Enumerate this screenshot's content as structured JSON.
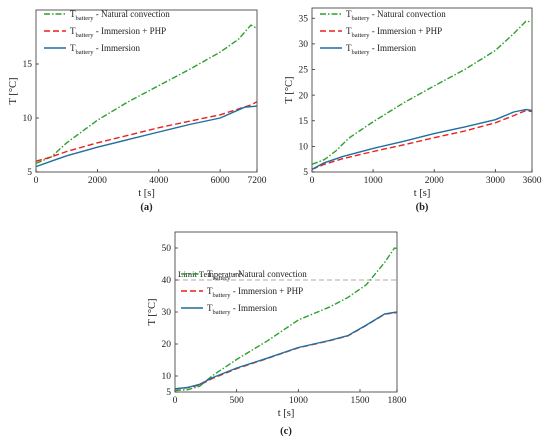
{
  "chart_data": [
    {
      "id": "a",
      "type": "line",
      "panel_label": "(a)",
      "xlabel": "t [s]",
      "ylabel": "T [°C]",
      "xlim": [
        0,
        7200
      ],
      "ylim": [
        5,
        20
      ],
      "xticks": [
        0,
        2000,
        4000,
        6000,
        7200
      ],
      "yticks": [
        5,
        10,
        15
      ],
      "grid": false,
      "legend": "top-left",
      "limit_line": null,
      "series": [
        {
          "key": "nc",
          "name": "T",
          "name_sub": "battery",
          "name_rest": " - Natural convection",
          "color": "#2ca02c",
          "style": "dashdot",
          "x": [
            0,
            500,
            1000,
            2000,
            3000,
            4000,
            5000,
            6000,
            6600,
            7000,
            7200
          ],
          "y": [
            5.8,
            6.4,
            7.7,
            9.8,
            11.5,
            13.0,
            14.5,
            16.1,
            17.3,
            18.6,
            18.3
          ]
        },
        {
          "key": "php",
          "name": "T",
          "name_sub": "battery",
          "name_rest": " - Immersion + PHP",
          "color": "#e8211b",
          "style": "dashed",
          "x": [
            0,
            500,
            1000,
            2000,
            3000,
            4000,
            5000,
            6000,
            7000,
            7200
          ],
          "y": [
            6.0,
            6.4,
            6.9,
            7.7,
            8.4,
            9.1,
            9.7,
            10.3,
            11.2,
            11.5
          ]
        },
        {
          "key": "imm",
          "name": "T",
          "name_sub": "battery",
          "name_rest": " - Immersion",
          "color": "#1f6f9f",
          "style": "solid",
          "x": [
            0,
            500,
            1000,
            2000,
            3000,
            4000,
            5000,
            6000,
            6800,
            7200
          ],
          "y": [
            5.5,
            6.0,
            6.5,
            7.3,
            8.0,
            8.7,
            9.4,
            10.0,
            11.0,
            11.1
          ]
        }
      ]
    },
    {
      "id": "b",
      "type": "line",
      "panel_label": "(b)",
      "xlabel": "t [s]",
      "ylabel": "T [°C]",
      "xlim": [
        0,
        3600
      ],
      "ylim": [
        5,
        37
      ],
      "xticks": [
        0,
        1000,
        2000,
        3000,
        3600
      ],
      "yticks": [
        5,
        10,
        15,
        20,
        25,
        30,
        35
      ],
      "grid": false,
      "legend": "top-left",
      "limit_line": null,
      "series": [
        {
          "key": "nc",
          "name": "T",
          "name_sub": "battery",
          "name_rest": " - Natural convection",
          "color": "#2ca02c",
          "style": "dashdot",
          "x": [
            0,
            200,
            400,
            600,
            1000,
            1500,
            2000,
            2500,
            3000,
            3300,
            3500,
            3600
          ],
          "y": [
            6.5,
            7.4,
            9.2,
            11.6,
            14.8,
            18.5,
            21.8,
            25.0,
            28.7,
            32.0,
            34.4,
            34.3
          ]
        },
        {
          "key": "php",
          "name": "T",
          "name_sub": "battery",
          "name_rest": " - Immersion + PHP",
          "color": "#e8211b",
          "style": "dashed",
          "x": [
            0,
            200,
            500,
            1000,
            1500,
            2000,
            2500,
            3000,
            3300,
            3500,
            3600
          ],
          "y": [
            5.5,
            6.5,
            7.6,
            9.0,
            10.3,
            11.7,
            13.0,
            14.6,
            16.0,
            17.0,
            16.8
          ]
        },
        {
          "key": "imm",
          "name": "T",
          "name_sub": "battery",
          "name_rest": " - Immersion",
          "color": "#1f6f9f",
          "style": "solid",
          "x": [
            0,
            200,
            500,
            1000,
            1500,
            2000,
            2500,
            3000,
            3300,
            3500,
            3600
          ],
          "y": [
            5.5,
            6.8,
            8.0,
            9.6,
            11.0,
            12.5,
            13.8,
            15.2,
            16.7,
            17.2,
            17.0
          ]
        }
      ]
    },
    {
      "id": "c",
      "type": "line",
      "panel_label": "(c)",
      "xlabel": "t [s]",
      "ylabel": "T [°C]",
      "xlim": [
        0,
        1800
      ],
      "ylim": [
        5,
        55
      ],
      "xticks": [
        0,
        500,
        1000,
        1500,
        1800
      ],
      "yticks": [
        5,
        10,
        20,
        30,
        40,
        50
      ],
      "grid": false,
      "legend": "top-left",
      "limit_line": {
        "y": 40,
        "label": "Limit Temperature",
        "color": "#aaaaaa"
      },
      "series": [
        {
          "key": "nc",
          "name": "T",
          "name_sub": "battery",
          "name_rest": " - Natural convection",
          "color": "#2ca02c",
          "style": "dashdot",
          "x": [
            0,
            100,
            200,
            300,
            500,
            750,
            1000,
            1250,
            1400,
            1550,
            1700,
            1780,
            1800
          ],
          "y": [
            5.5,
            5.7,
            6.8,
            10.0,
            15.2,
            21.0,
            27.5,
            31.5,
            34.5,
            38.5,
            45.5,
            50.0,
            49.8
          ]
        },
        {
          "key": "php",
          "name": "T",
          "name_sub": "battery",
          "name_rest": " - Immersion + PHP",
          "color": "#e8211b",
          "style": "dashed",
          "x": [
            0,
            100,
            200,
            300,
            500,
            750,
            1000,
            1250,
            1400,
            1550,
            1700,
            1800
          ],
          "y": [
            6.0,
            6.3,
            7.2,
            9.2,
            12.3,
            15.5,
            18.8,
            21.0,
            22.5,
            25.8,
            29.3,
            29.8
          ]
        },
        {
          "key": "imm",
          "name": "T",
          "name_sub": "battery",
          "name_rest": " - Immersion",
          "color": "#1f6f9f",
          "style": "solid",
          "x": [
            0,
            100,
            200,
            300,
            500,
            750,
            1000,
            1250,
            1400,
            1550,
            1700,
            1800
          ],
          "y": [
            6.0,
            6.4,
            7.4,
            9.4,
            12.5,
            15.6,
            18.9,
            21.1,
            22.6,
            25.9,
            29.4,
            30.0
          ]
        }
      ]
    }
  ]
}
